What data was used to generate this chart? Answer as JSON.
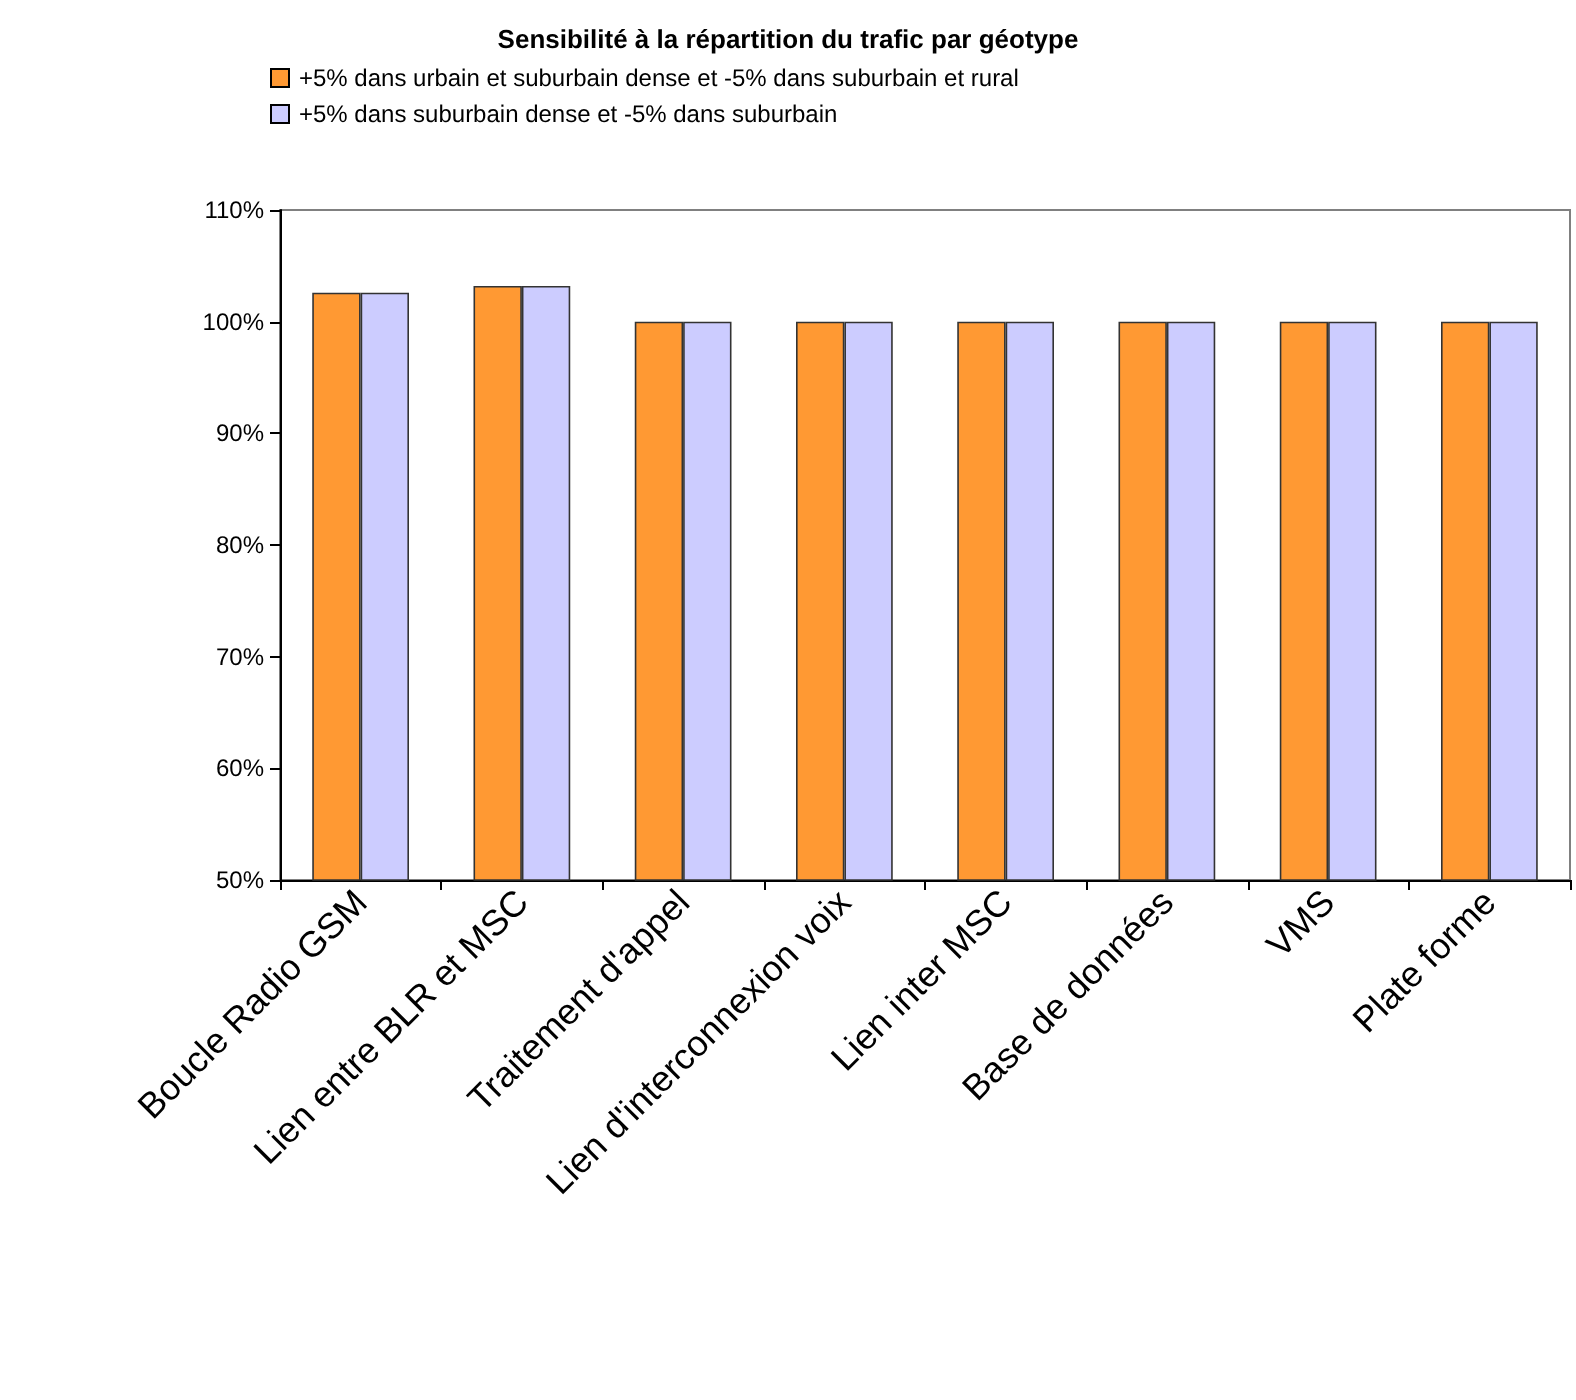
{
  "chart_data": {
    "type": "bar",
    "title": "Sensibilité à la répartition du trafic par géotype",
    "categories": [
      "Boucle Radio GSM",
      "Lien entre BLR et MSC",
      "Traitement d'appel",
      "Lien d'interconnexion voix",
      "Lien inter MSC",
      "Base de données",
      "VMS",
      "Plate forme"
    ],
    "series": [
      {
        "name": "+5% dans urbain et suburbain dense et -5% dans suburbain et rural",
        "color": "#ff9933",
        "values": [
          102.6,
          103.2,
          100,
          100,
          100,
          100,
          100,
          100
        ]
      },
      {
        "name": "+5% dans suburbain dense et -5% dans suburbain",
        "color": "#ccccff",
        "values": [
          102.6,
          103.2,
          100,
          100,
          100,
          100,
          100,
          100
        ]
      }
    ],
    "ylim": [
      50,
      110
    ],
    "yticks": [
      {
        "value": 50,
        "label": "50%"
      },
      {
        "value": 60,
        "label": "60%"
      },
      {
        "value": 70,
        "label": "70%"
      },
      {
        "value": 80,
        "label": "80%"
      },
      {
        "value": 90,
        "label": "90%"
      },
      {
        "value": 100,
        "label": "100%"
      },
      {
        "value": 110,
        "label": "110%"
      }
    ],
    "grid": false,
    "legend": "top"
  }
}
